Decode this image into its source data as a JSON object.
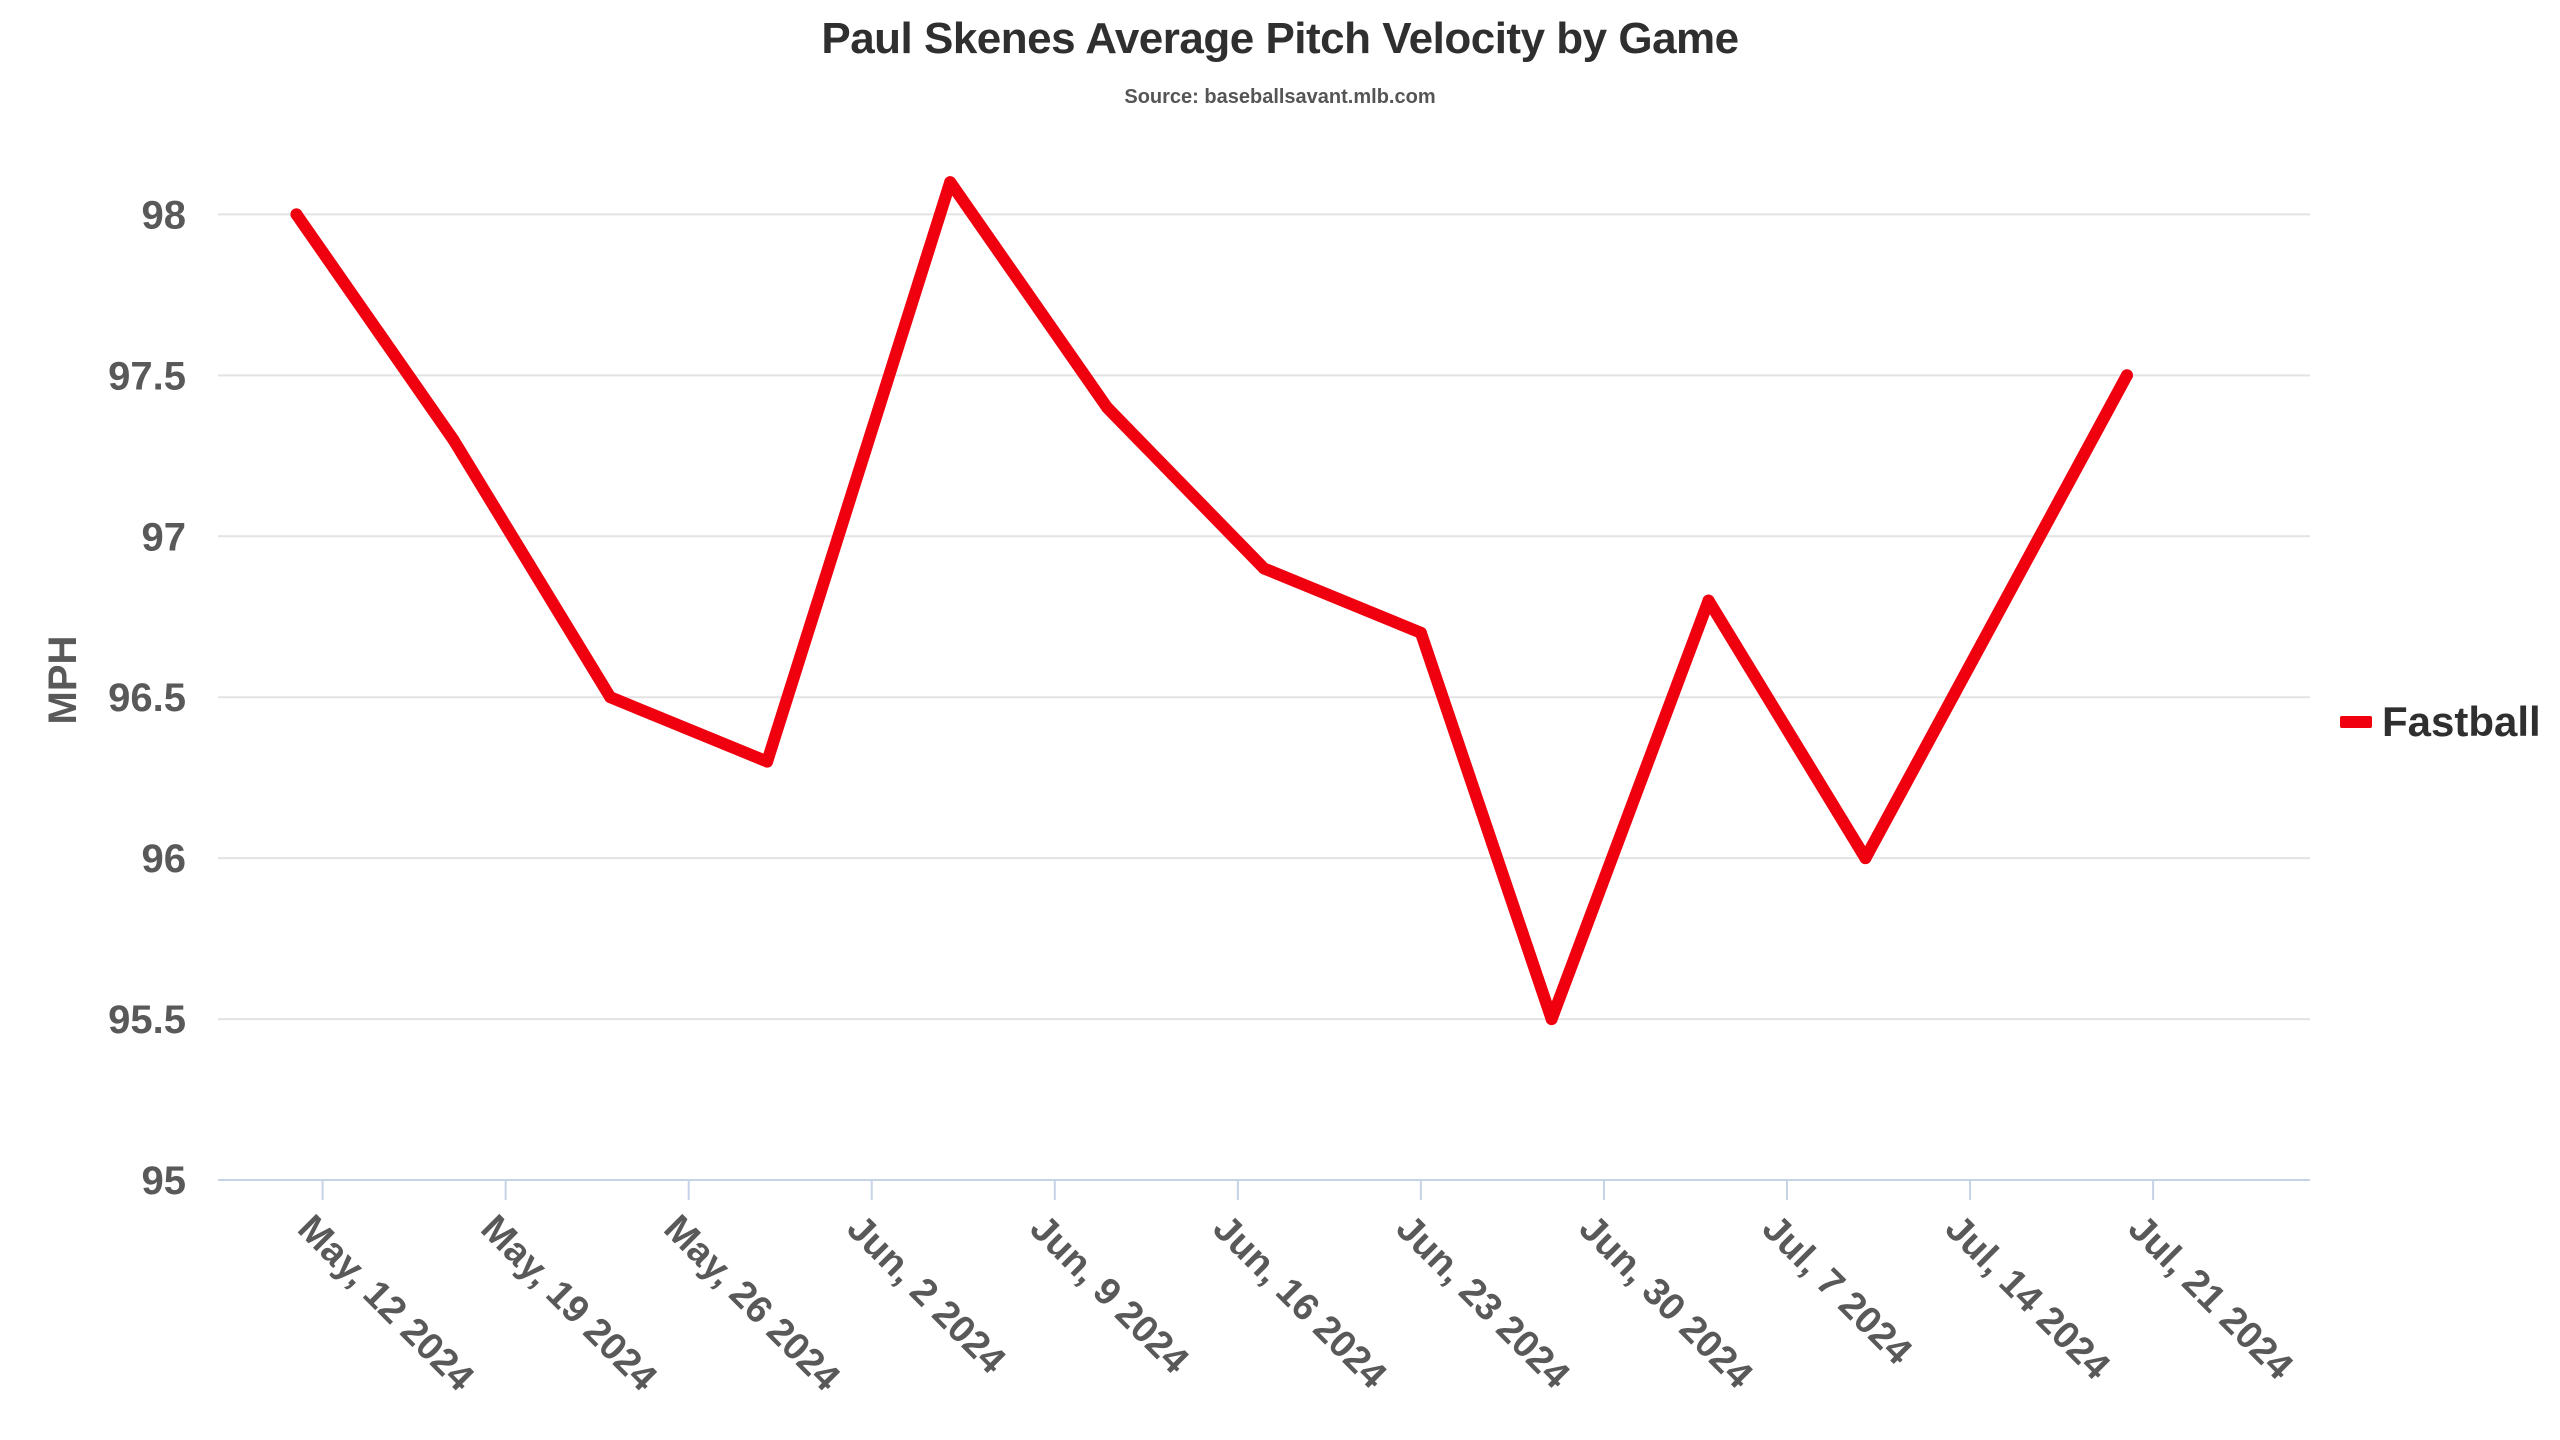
{
  "chart_data": {
    "type": "line",
    "title": "Paul Skenes Average Pitch Velocity by Game",
    "subtitle": "Source: baseballsavant.mlb.com",
    "xlabel": "",
    "ylabel": "MPH",
    "ylim": [
      95,
      98.2
    ],
    "yticks": [
      "95",
      "95.5",
      "96",
      "96.5",
      "97",
      "97.5",
      "98"
    ],
    "xlim": [
      "2024-05-08",
      "2024-07-27"
    ],
    "xticks": [
      {
        "date": "2024-05-12",
        "label": "May, 12 2024"
      },
      {
        "date": "2024-05-19",
        "label": "May, 19 2024"
      },
      {
        "date": "2024-05-26",
        "label": "May, 26 2024"
      },
      {
        "date": "2024-06-02",
        "label": "Jun, 2 2024"
      },
      {
        "date": "2024-06-09",
        "label": "Jun, 9 2024"
      },
      {
        "date": "2024-06-16",
        "label": "Jun, 16 2024"
      },
      {
        "date": "2024-06-23",
        "label": "Jun, 23 2024"
      },
      {
        "date": "2024-06-30",
        "label": "Jun, 30 2024"
      },
      {
        "date": "2024-07-07",
        "label": "Jul, 7 2024"
      },
      {
        "date": "2024-07-14",
        "label": "Jul, 14 2024"
      },
      {
        "date": "2024-07-21",
        "label": "Jul, 21 2024"
      }
    ],
    "grid": true,
    "legend_position": "right",
    "series": [
      {
        "name": "Fastball",
        "color": "#f0000f",
        "points": [
          {
            "x": "2024-05-11",
            "y": 98.0
          },
          {
            "x": "2024-05-17",
            "y": 97.3
          },
          {
            "x": "2024-05-23",
            "y": 96.5
          },
          {
            "x": "2024-05-29",
            "y": 96.3
          },
          {
            "x": "2024-06-05",
            "y": 98.1
          },
          {
            "x": "2024-06-11",
            "y": 97.4
          },
          {
            "x": "2024-06-17",
            "y": 96.9
          },
          {
            "x": "2024-06-23",
            "y": 96.7
          },
          {
            "x": "2024-06-28",
            "y": 95.5
          },
          {
            "x": "2024-07-04",
            "y": 96.8
          },
          {
            "x": "2024-07-10",
            "y": 96.0
          },
          {
            "x": "2024-07-20",
            "y": 97.5
          }
        ]
      }
    ]
  }
}
